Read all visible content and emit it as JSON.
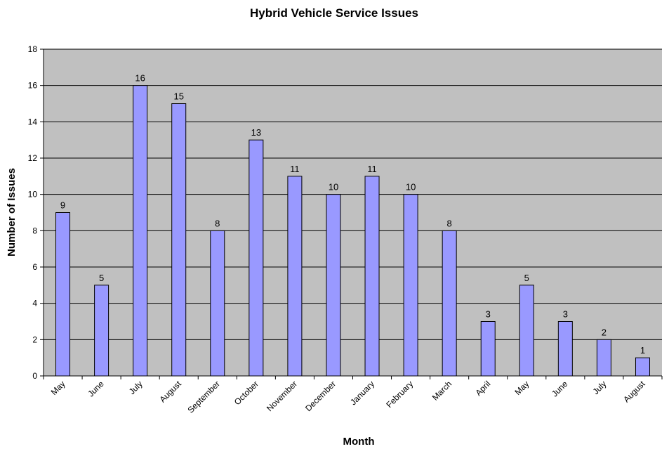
{
  "chart_data": {
    "type": "bar",
    "title": "Hybrid Vehicle Service Issues",
    "xlabel": "Month",
    "ylabel": "Number of Issues",
    "categories": [
      "May",
      "June",
      "July",
      "August",
      "September",
      "October",
      "November",
      "December",
      "January",
      "February",
      "March",
      "April",
      "May",
      "June",
      "July",
      "August"
    ],
    "values": [
      9,
      5,
      16,
      15,
      8,
      13,
      11,
      10,
      11,
      10,
      8,
      3,
      5,
      3,
      2,
      1
    ],
    "ylim": [
      0,
      18
    ],
    "yticks": [
      0,
      2,
      4,
      6,
      8,
      10,
      12,
      14,
      16,
      18
    ],
    "grid": true,
    "legend": "none",
    "colors": {
      "bar_fill": "#9999ff",
      "bar_stroke": "#000000",
      "plot_background": "#c0c0c0",
      "grid": "#000000"
    }
  }
}
